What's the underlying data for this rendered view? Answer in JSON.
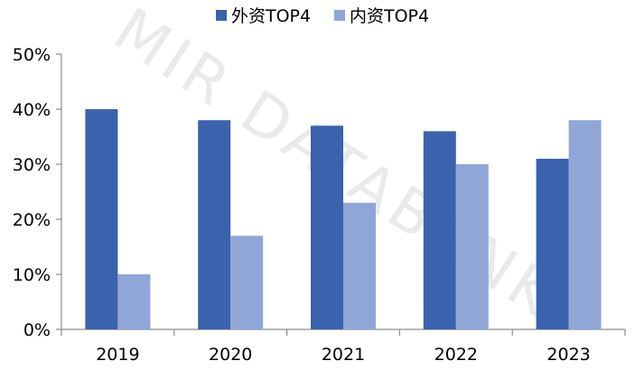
{
  "watermark": "MIR DATABANK",
  "chart_data": {
    "type": "bar",
    "categories": [
      "2019",
      "2020",
      "2021",
      "2022",
      "2023"
    ],
    "series": [
      {
        "name": "外资TOP4",
        "values": [
          40,
          38,
          37,
          36,
          31
        ],
        "color": "#3a62ad"
      },
      {
        "name": "内资TOP4",
        "values": [
          10,
          17,
          23,
          30,
          38
        ],
        "color": "#8fa6d6"
      }
    ],
    "ylim": [
      0,
      50
    ],
    "yticks": [
      0,
      10,
      20,
      30,
      40,
      50
    ],
    "y_tick_suffix": "%",
    "legend_position": "top-center",
    "grid": false,
    "title": "",
    "xlabel": "",
    "ylabel": ""
  }
}
